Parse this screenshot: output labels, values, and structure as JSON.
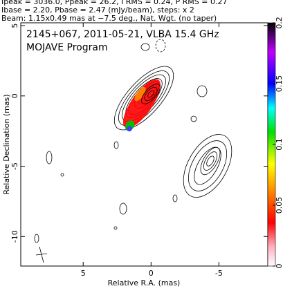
{
  "header": {
    "lines": [
      "Ipeak = 3036.0, Ppeak = 26.2, I RMS = 0.24, P RMS = 0.27",
      "Ibase = 2.20, Pbase = 2.47 (mJy/beam), steps: x 2",
      "Beam: 1.15x0.49 mas at −7.5 deg., Nat. Wgt. (no taper)"
    ]
  },
  "chart_data": {
    "type": "contour",
    "title": "2145+067, 2011-05-21, VLBA 15.4 GHz",
    "subtitle": "MOJAVE Program",
    "x_label": "Relative R.A. (mas)",
    "y_label": "Relative Declination (mas)",
    "xlim": [
      9.6,
      -8.6
    ],
    "xticks": [
      5,
      0,
      -5
    ],
    "ylim": [
      -12.1,
      5.2
    ],
    "yticks": [
      5,
      0,
      -5,
      -10
    ],
    "colorbar": {
      "lim": [
        0,
        0.2
      ],
      "ticks": [
        0,
        0.05,
        0.1,
        0.15,
        0.2
      ]
    }
  }
}
